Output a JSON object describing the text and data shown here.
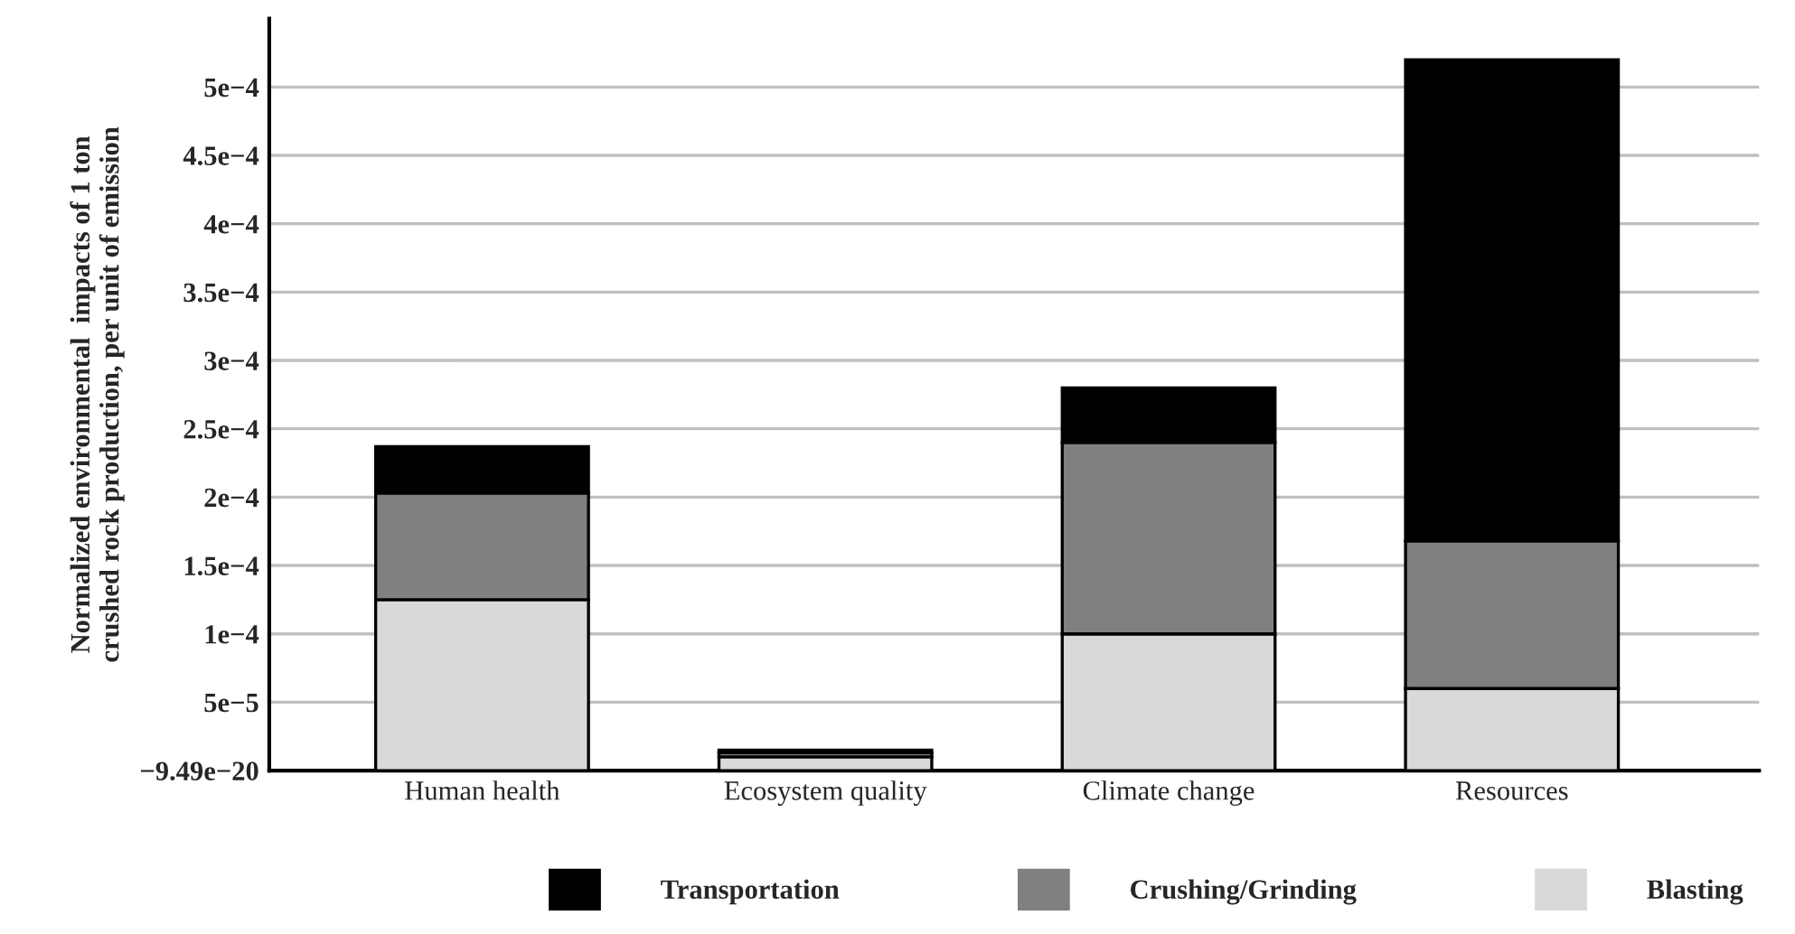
{
  "chart_data": {
    "type": "bar",
    "stacked": true,
    "ylabel": "Normalized environmental  impacts of 1 ton\ncrushed rock production, per unit of emission",
    "categories": [
      "Human health",
      "Ecosystem quality",
      "Climate change",
      "Resources"
    ],
    "series": [
      {
        "name": "Blasting",
        "color": "#d9d9d9",
        "values": [
          0.000125,
          1e-05,
          0.0001,
          6e-05
        ]
      },
      {
        "name": "Crushing/Grinding",
        "color": "#808080",
        "values": [
          7.8e-05,
          3e-06,
          0.00014,
          0.000108
        ]
      },
      {
        "name": "Transportation",
        "color": "#000000",
        "values": [
          3.4e-05,
          2e-06,
          4e-05,
          0.000352
        ]
      }
    ],
    "ylim": [
      0,
      0.00055
    ],
    "yticks": [
      {
        "value": 0,
        "label": "−9.49e−20"
      },
      {
        "value": 5e-05,
        "label": "5e−5"
      },
      {
        "value": 0.0001,
        "label": "1e−4"
      },
      {
        "value": 0.00015,
        "label": "1.5e−4"
      },
      {
        "value": 0.0002,
        "label": "2e−4"
      },
      {
        "value": 0.00025,
        "label": "2.5e−4"
      },
      {
        "value": 0.0003,
        "label": "3e−4"
      },
      {
        "value": 0.00035,
        "label": "3.5e−4"
      },
      {
        "value": 0.0004,
        "label": "4e−4"
      },
      {
        "value": 0.00045,
        "label": "4.5e−4"
      },
      {
        "value": 0.0005,
        "label": "5e−4"
      }
    ],
    "grid": "y",
    "legend": "bottom"
  }
}
